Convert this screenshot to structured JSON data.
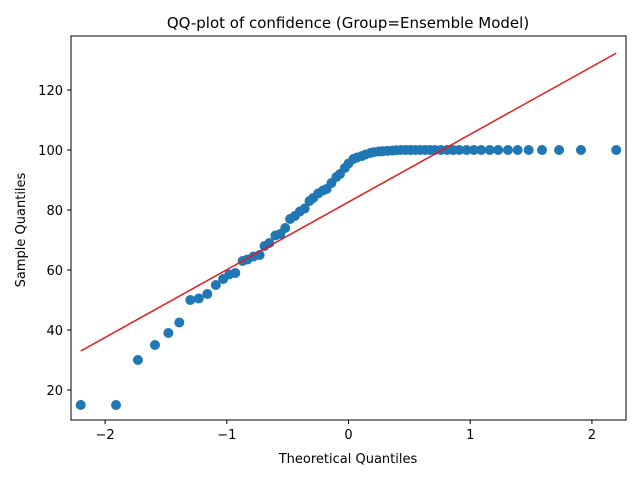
{
  "chart_data": {
    "type": "scatter",
    "title": "QQ-plot of confidence (Group=Ensemble Model)",
    "xlabel": "Theoretical Quantiles",
    "ylabel": "Sample Quantiles",
    "xlim": [
      -2.28,
      2.28
    ],
    "ylim": [
      10,
      138
    ],
    "xticks": [
      -2,
      -1,
      0,
      1,
      2
    ],
    "xtick_labels": [
      "−2",
      "−1",
      "0",
      "1",
      "2"
    ],
    "yticks": [
      20,
      40,
      60,
      80,
      100,
      120
    ],
    "ytick_labels": [
      "20",
      "40",
      "60",
      "80",
      "100",
      "120"
    ],
    "grid": false,
    "legend": "none",
    "point_color": "#1f77b4",
    "line_color": "#e41a1c",
    "reference_line": {
      "x": [
        -2.2,
        2.2
      ],
      "y": [
        33,
        132.3
      ]
    },
    "points": {
      "x": [
        -2.2,
        -1.91,
        -1.73,
        -1.59,
        -1.48,
        -1.39,
        -1.3,
        -1.23,
        -1.16,
        -1.09,
        -1.03,
        -0.98,
        -0.93,
        -0.87,
        -0.83,
        -0.78,
        -0.73,
        -0.69,
        -0.65,
        -0.6,
        -0.56,
        -0.52,
        -0.48,
        -0.44,
        -0.4,
        -0.36,
        -0.32,
        -0.29,
        -0.25,
        -0.21,
        -0.18,
        -0.14,
        -0.1,
        -0.07,
        -0.03,
        0.0,
        0.04,
        0.07,
        0.11,
        0.14,
        0.18,
        0.21,
        0.25,
        0.28,
        0.32,
        0.36,
        0.39,
        0.43,
        0.47,
        0.51,
        0.55,
        0.59,
        0.63,
        0.67,
        0.71,
        0.76,
        0.81,
        0.86,
        0.91,
        0.97,
        1.03,
        1.09,
        1.16,
        1.23,
        1.31,
        1.39,
        1.48,
        1.59,
        1.73,
        1.91,
        2.2
      ],
      "y": [
        15,
        15,
        30,
        35,
        39,
        42.5,
        50,
        50.5,
        52,
        55,
        57,
        58.5,
        59,
        63,
        63.5,
        64.5,
        65,
        68,
        69,
        71.5,
        72,
        74,
        77,
        78,
        79.5,
        80.5,
        83,
        84,
        85.5,
        86.5,
        87,
        89,
        91,
        92,
        94,
        95.5,
        97,
        97.5,
        98,
        98.5,
        99,
        99.3,
        99.5,
        99.6,
        99.7,
        99.8,
        99.9,
        100,
        100,
        100,
        100,
        100,
        100,
        100,
        100,
        100,
        100,
        100,
        100,
        100,
        100,
        100,
        100,
        100,
        100,
        100,
        100,
        100,
        100,
        100,
        100
      ]
    }
  }
}
